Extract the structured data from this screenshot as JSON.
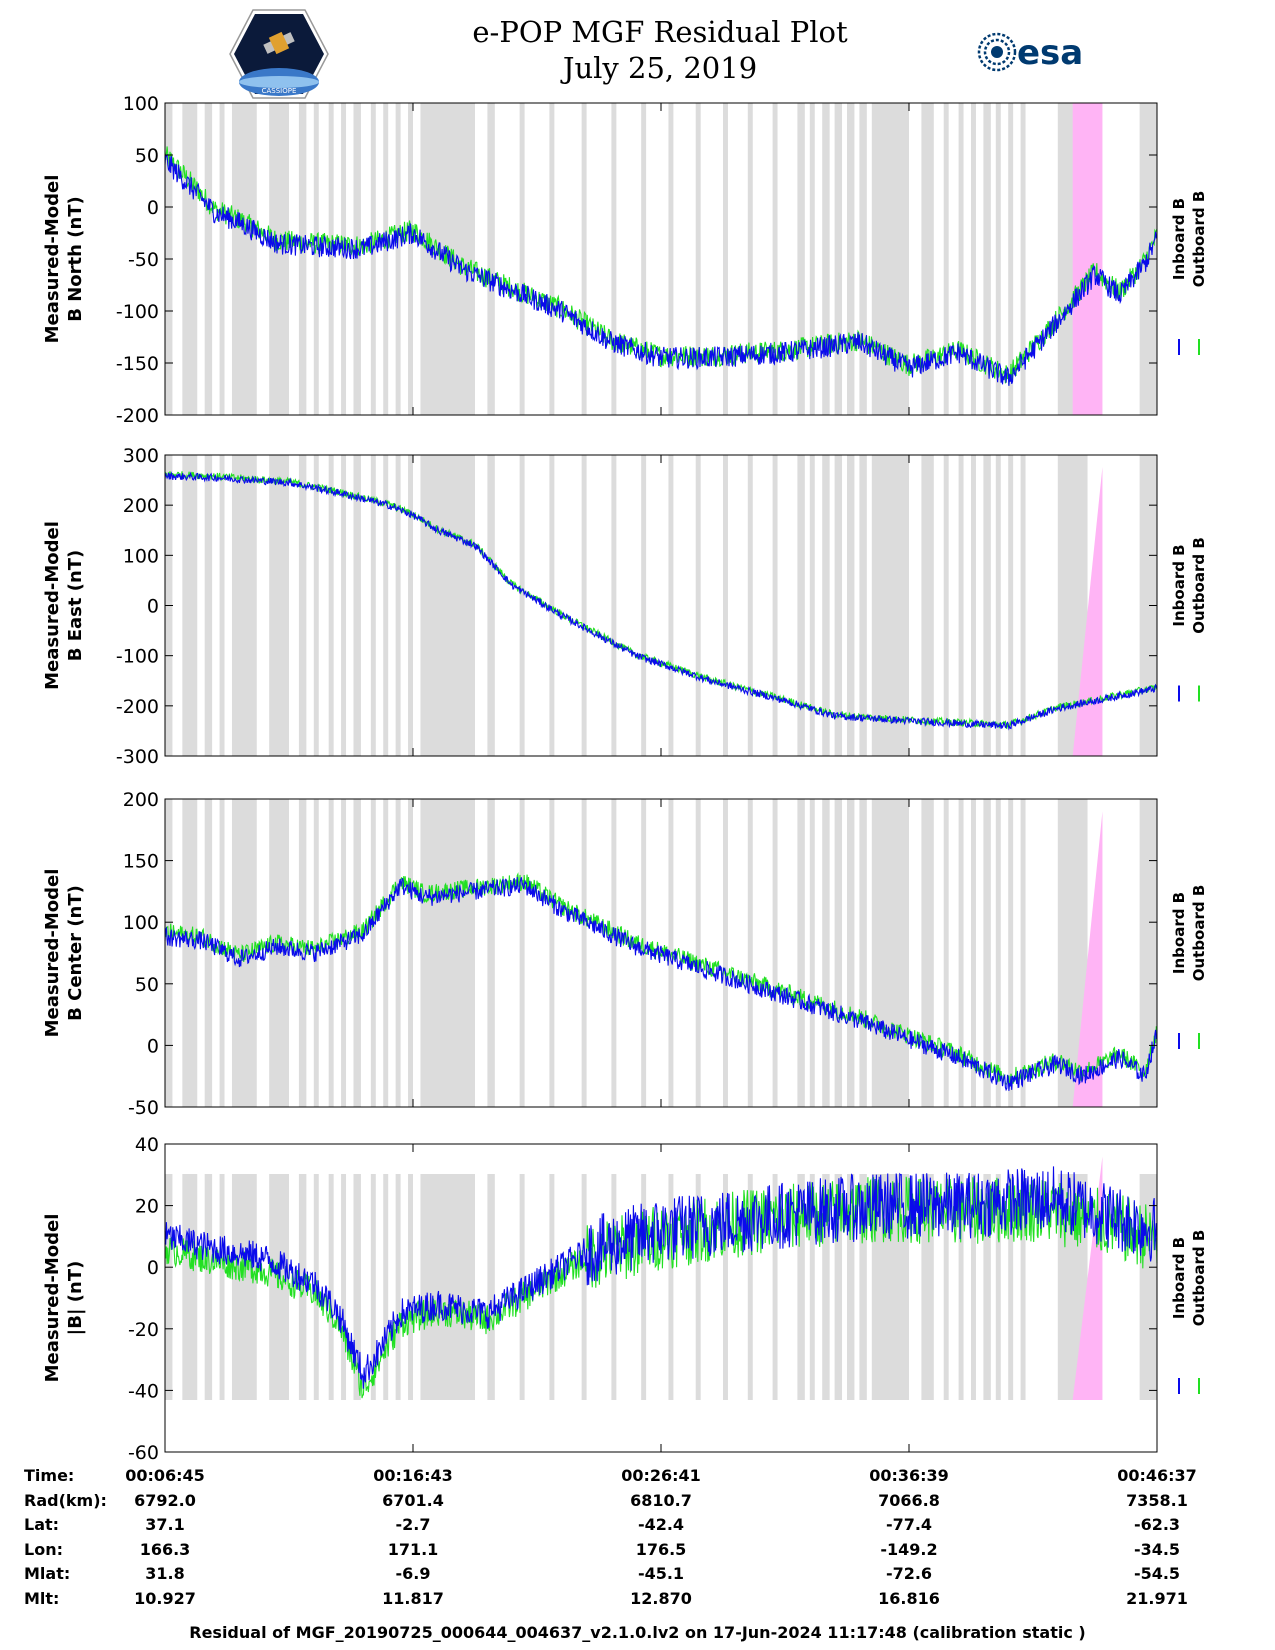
{
  "header": {
    "title_line1": "e-POP MGF Residual Plot",
    "title_line2": "July 25, 2019",
    "logo_left": "satellite-mission-logo",
    "logo_right_text": "esa"
  },
  "colors": {
    "inboard": "#0a0aeb",
    "outboard": "#22e022",
    "gap_shade": "#dcdcdc",
    "calibration_shade": "#ffb4f5"
  },
  "chart_data": [
    {
      "type": "line",
      "ylabel_line1": "Measured-Model",
      "ylabel_line2": "B North (nT)",
      "ylim": [
        -200,
        100
      ],
      "yticks": [
        "100",
        "50",
        "0",
        "-50",
        "-100",
        "-150",
        "-200"
      ],
      "legend": [
        "Inboard B",
        "Outboard B"
      ],
      "x": [
        0,
        0.1,
        0.2,
        0.3,
        0.45,
        0.6,
        0.8,
        1.0,
        1.2,
        1.4,
        1.6,
        1.8,
        2.0,
        2.2,
        2.5,
        2.8,
        3.0,
        3.2,
        3.4,
        3.6,
        3.75,
        3.85,
        3.95,
        4.0
      ],
      "series": [
        {
          "name": "Inboard B",
          "values": [
            45,
            20,
            -5,
            -15,
            -35,
            -38,
            -40,
            -25,
            -60,
            -80,
            -100,
            -130,
            -145,
            -145,
            -140,
            -130,
            -155,
            -140,
            -165,
            -110,
            -65,
            -85,
            -55,
            -30
          ]
        },
        {
          "name": "Outboard B",
          "values": [
            50,
            25,
            -2,
            -12,
            -32,
            -35,
            -37,
            -22,
            -57,
            -78,
            -98,
            -128,
            -143,
            -143,
            -138,
            -128,
            -152,
            -138,
            -162,
            -107,
            -62,
            -82,
            -52,
            -27
          ]
        }
      ]
    },
    {
      "type": "line",
      "ylabel_line1": "Measured-Model",
      "ylabel_line2": "B East (nT)",
      "ylim": [
        -300,
        300
      ],
      "yticks": [
        "300",
        "200",
        "100",
        "0",
        "-100",
        "-200",
        "-300"
      ],
      "legend": [
        "Inboard B",
        "Outboard B"
      ],
      "x": [
        0,
        0.2,
        0.35,
        0.5,
        0.7,
        0.9,
        1.0,
        1.1,
        1.25,
        1.4,
        1.6,
        1.9,
        2.2,
        2.5,
        2.7,
        3.0,
        3.2,
        3.4,
        3.6,
        3.8,
        4.0
      ],
      "series": [
        {
          "name": "Inboard B",
          "values": [
            258,
            255,
            250,
            245,
            225,
            200,
            180,
            150,
            120,
            40,
            -20,
            -100,
            -150,
            -190,
            -220,
            -230,
            -235,
            -240,
            -205,
            -185,
            -165
          ]
        },
        {
          "name": "Outboard B",
          "values": [
            262,
            258,
            252,
            247,
            227,
            202,
            182,
            152,
            122,
            42,
            -18,
            -98,
            -148,
            -188,
            -218,
            -228,
            -233,
            -238,
            -203,
            -183,
            -163
          ]
        }
      ]
    },
    {
      "type": "line",
      "ylabel_line1": "Measured-Model",
      "ylabel_line2": "B Center (nT)",
      "ylim": [
        -50,
        200
      ],
      "yticks": [
        "200",
        "150",
        "100",
        "50",
        "0",
        "-50"
      ],
      "legend": [
        "Inboard B",
        "Outboard B"
      ],
      "x": [
        0,
        0.15,
        0.3,
        0.45,
        0.6,
        0.8,
        0.95,
        1.05,
        1.25,
        1.45,
        1.6,
        1.9,
        2.2,
        2.5,
        2.8,
        3.0,
        3.2,
        3.4,
        3.6,
        3.7,
        3.85,
        3.95,
        4.0
      ],
      "series": [
        {
          "name": "Inboard B",
          "values": [
            88,
            85,
            70,
            80,
            75,
            90,
            130,
            120,
            125,
            130,
            110,
            80,
            60,
            40,
            20,
            5,
            -10,
            -30,
            -15,
            -25,
            -10,
            -25,
            10
          ]
        },
        {
          "name": "Outboard B",
          "values": [
            92,
            88,
            73,
            83,
            78,
            93,
            133,
            123,
            128,
            133,
            113,
            83,
            63,
            43,
            23,
            8,
            -7,
            -27,
            -12,
            -22,
            -7,
            -22,
            13
          ]
        }
      ]
    },
    {
      "type": "line",
      "ylabel_line1": "Measured-Model",
      "ylabel_line2": "|B| (nT)",
      "ylim": [
        -60,
        40
      ],
      "yticks": [
        "40",
        "20",
        "0",
        "-20",
        "-40",
        "-60"
      ],
      "legend": [
        "Inboard B",
        "Outboard B"
      ],
      "x": [
        0,
        0.2,
        0.4,
        0.6,
        0.7,
        0.8,
        0.88,
        0.95,
        1.1,
        1.3,
        1.5,
        1.7,
        2.0,
        2.3,
        2.6,
        2.9,
        3.2,
        3.5,
        3.6,
        3.8,
        4.0
      ],
      "series": [
        {
          "name": "Inboard B",
          "values": [
            10,
            6,
            3,
            -5,
            -15,
            -35,
            -25,
            -15,
            -12,
            -15,
            -5,
            5,
            12,
            15,
            18,
            20,
            20,
            22,
            22,
            17,
            12
          ]
        },
        {
          "name": "Outboard B",
          "values": [
            6,
            2,
            -1,
            -8,
            -18,
            -40,
            -28,
            -18,
            -14,
            -17,
            -7,
            3,
            10,
            14,
            17,
            19,
            18,
            19,
            18,
            14,
            9
          ]
        }
      ]
    }
  ],
  "ephemeris": {
    "labels": [
      "Time:",
      "Rad(km):",
      "Lat:",
      "Lon:",
      "Mlat:",
      "Mlt:"
    ],
    "columns": [
      [
        "00:06:45",
        "6792.0",
        "37.1",
        "166.3",
        "31.8",
        "10.927"
      ],
      [
        "00:16:43",
        "6701.4",
        "-2.7",
        "171.1",
        "-6.9",
        "11.817"
      ],
      [
        "00:26:41",
        "6810.7",
        "-42.4",
        "176.5",
        "-45.1",
        "12.870"
      ],
      [
        "00:36:39",
        "7066.8",
        "-77.4",
        "-149.2",
        "-72.6",
        "16.816"
      ],
      [
        "00:46:37",
        "7358.1",
        "-62.3",
        "-34.5",
        "-54.5",
        "21.971"
      ]
    ]
  },
  "footer": {
    "text": "Residual of MGF_20190725_000644_004637_v2.1.0.lv2 on 17-Jun-2024 11:17:48 (calibration static )"
  }
}
